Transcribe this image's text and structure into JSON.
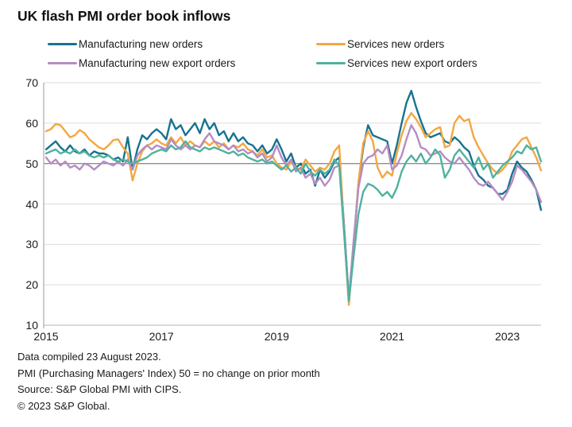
{
  "title": "UK flash PMI order book inflows",
  "legend": {
    "items": [
      {
        "id": "manufacturing-new-orders",
        "label": "Manufacturing new orders"
      },
      {
        "id": "services-new-orders",
        "label": "Services new orders"
      },
      {
        "id": "manufacturing-new-export-orders",
        "label": "Manufacturing new export orders"
      },
      {
        "id": "services-new-export-orders",
        "label": "Services new export orders"
      }
    ]
  },
  "footnotes": [
    "Data compiled 23 August 2023.",
    "PMI (Purchasing Managers' Index) 50 = no change on prior month",
    "Source: S&P Global PMI with CIPS.",
    "© 2023 S&P Global."
  ],
  "colors": {
    "grid": "#dbdbdb",
    "reference_line": "#8f8f8f",
    "axis": "#a9a9a9",
    "baseline": "#c2c2c2",
    "text": "#1a1a1a"
  },
  "chart_data": {
    "type": "line",
    "title": "UK flash PMI order book inflows",
    "xlabel": "",
    "ylabel": "",
    "frequency": "monthly",
    "x_start": "2015-01",
    "x_end": "2023-08",
    "x_start_year": 2015,
    "x_tick_labels": [
      "2015",
      "2017",
      "2019",
      "2021",
      "2023"
    ],
    "y_ticks": [
      70,
      60,
      50,
      40,
      30,
      20,
      10
    ],
    "ylim": [
      10,
      70
    ],
    "reference_line": 50,
    "grid": "horizontal",
    "legend_position": "top",
    "series": [
      {
        "id": "manufacturing-new-orders",
        "name": "Manufacturing new orders",
        "color": "#17738e",
        "values": [
          53.5,
          54.5,
          55.5,
          54,
          53,
          54.5,
          53,
          52.5,
          53.5,
          52,
          53,
          52.5,
          52.5,
          52,
          51,
          51.5,
          50.5,
          56.5,
          48.5,
          53.5,
          57,
          56,
          57.5,
          58.5,
          57.5,
          56,
          61,
          58.5,
          59.5,
          57,
          58.5,
          60,
          57.5,
          61,
          58.5,
          60,
          57,
          58,
          55.5,
          57.5,
          55.5,
          56.5,
          55,
          54.5,
          53,
          54.5,
          52.5,
          53.5,
          56,
          53.5,
          50.5,
          52.5,
          49,
          50,
          47.5,
          48.5,
          44.5,
          48.5,
          46.5,
          48,
          50.5,
          51.5,
          35,
          16.5,
          30,
          45,
          54,
          59.5,
          57,
          56.5,
          56,
          55.5,
          50,
          54.5,
          60,
          65,
          68,
          64,
          60.5,
          57.5,
          56.5,
          57,
          57.5,
          55.5,
          55,
          56.5,
          55.5,
          54,
          53,
          49.5,
          47,
          46,
          44.5,
          44,
          42.5,
          42.5,
          43.5,
          47.5,
          50.5,
          49,
          48,
          46,
          43.5,
          38.5
        ]
      },
      {
        "id": "services-new-orders",
        "name": "Services new orders",
        "color": "#f3a740",
        "values": [
          58,
          58.5,
          59.8,
          59.5,
          58,
          56.5,
          57,
          58.3,
          57.5,
          56,
          55,
          54,
          53.5,
          54.5,
          55.8,
          56,
          54,
          52.5,
          45.8,
          50,
          53,
          54.5,
          55,
          56,
          55,
          54.5,
          56.5,
          55,
          56.5,
          54.5,
          55.5,
          54.5,
          54,
          55.5,
          54.5,
          55.5,
          54,
          55,
          53.5,
          54.5,
          54,
          55,
          53.5,
          53,
          52,
          53.5,
          51.5,
          52,
          50,
          49,
          48.5,
          50.5,
          49,
          48.5,
          51,
          49.5,
          48,
          49,
          48.5,
          50,
          53,
          54.5,
          34,
          15,
          29,
          45.5,
          55,
          58,
          55.5,
          49,
          46.5,
          48,
          47,
          52.5,
          57,
          60.5,
          62.5,
          61,
          59,
          56.5,
          57.5,
          58.5,
          59,
          54,
          54.5,
          60,
          61.8,
          60.5,
          61,
          56.5,
          54,
          52,
          50,
          48.5,
          47.5,
          48.5,
          50,
          53,
          54.5,
          56,
          56.5,
          54,
          51.5,
          48.3
        ]
      },
      {
        "id": "manufacturing-new-export-orders",
        "name": "Manufacturing new export orders",
        "color": "#b58cc4",
        "values": [
          51.5,
          50,
          51,
          49.5,
          50.5,
          49,
          49.5,
          48.5,
          50,
          49.5,
          48.5,
          49.5,
          50.5,
          50,
          49.5,
          50.5,
          49.5,
          51,
          48.5,
          52,
          53.5,
          54.5,
          53.5,
          54.5,
          54,
          53.5,
          56,
          54.5,
          53.5,
          54.5,
          53.5,
          54.5,
          54,
          56,
          57.5,
          55.5,
          55,
          54.5,
          53.5,
          54.5,
          53,
          53.5,
          52.5,
          53,
          51.5,
          52.5,
          50.5,
          51.5,
          54.5,
          51.5,
          49.5,
          51,
          48,
          49,
          46.5,
          47.5,
          45,
          46.5,
          44.5,
          46,
          49,
          49.5,
          34.5,
          16.5,
          31,
          44,
          50,
          51.5,
          52,
          53.5,
          52.5,
          54.5,
          48.5,
          49.5,
          52,
          56,
          59.5,
          57.5,
          54,
          53.5,
          52,
          52.5,
          53,
          51.5,
          50.5,
          50,
          51.5,
          50,
          48.5,
          46.5,
          45,
          44.5,
          45.5,
          44,
          42.5,
          41,
          43,
          45.5,
          49.5,
          48.5,
          47,
          45.5,
          43.5,
          40.5
        ]
      },
      {
        "id": "services-new-export-orders",
        "name": "Services new export orders",
        "color": "#4fb29e",
        "values": [
          52.5,
          53,
          53.5,
          52.5,
          53,
          52.5,
          53.5,
          52.5,
          53,
          52,
          51.5,
          52,
          51.5,
          52,
          51,
          50.5,
          51,
          50.5,
          50,
          50.5,
          51,
          51.5,
          52.5,
          53,
          53.5,
          53,
          54.5,
          53.5,
          54,
          55.5,
          54,
          53.5,
          53,
          54,
          53.5,
          54,
          53.5,
          53,
          52.5,
          53,
          52,
          52.5,
          51.5,
          51,
          50.5,
          51,
          50,
          50.5,
          49.5,
          48.5,
          49.5,
          48,
          49,
          47.5,
          50,
          48,
          47,
          48.5,
          47.5,
          48.5,
          51,
          49.5,
          33,
          16,
          27,
          37.5,
          43,
          45,
          44.5,
          43.5,
          42,
          43,
          41.5,
          44,
          48,
          50.5,
          52,
          50.5,
          52.5,
          50,
          51.5,
          53.5,
          52,
          46.5,
          48.5,
          52,
          53.5,
          52,
          50.5,
          49,
          51.5,
          48.5,
          50,
          46.5,
          48,
          49.5,
          50.5,
          51.5,
          53,
          52.5,
          54.5,
          53.5,
          54,
          50.5
        ]
      }
    ]
  }
}
